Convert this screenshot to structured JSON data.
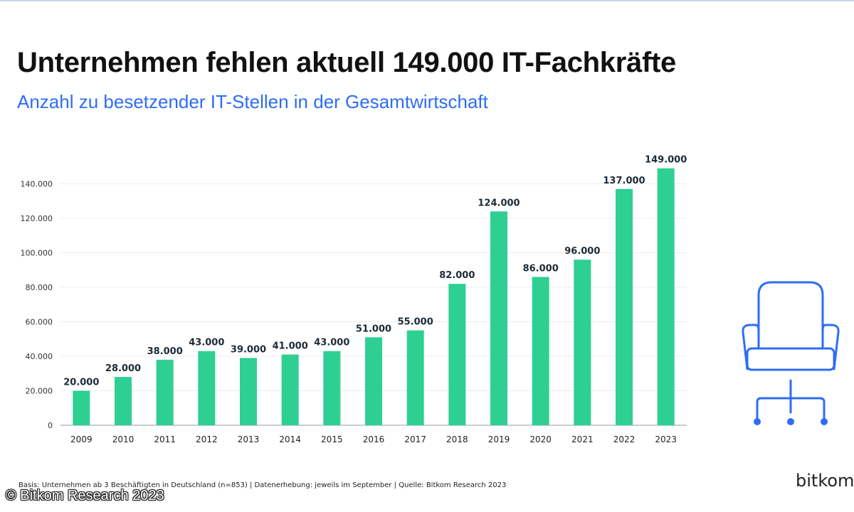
{
  "header": {
    "title": "Unternehmen fehlen aktuell 149.000 IT-Fachkräfte",
    "subtitle": "Anzahl zu besetzender IT-Stellen in der Gesamtwirtschaft"
  },
  "chart_data": {
    "type": "bar",
    "categories": [
      "2009",
      "2010",
      "2011",
      "2012",
      "2013",
      "2014",
      "2015",
      "2016",
      "2017",
      "2018",
      "2019",
      "2020",
      "2021",
      "2022",
      "2023"
    ],
    "values": [
      20000,
      28000,
      38000,
      43000,
      39000,
      41000,
      43000,
      51000,
      55000,
      82000,
      124000,
      86000,
      96000,
      137000,
      149000
    ],
    "data_labels": [
      "20.000",
      "28.000",
      "38.000",
      "43.000",
      "39.000",
      "41.000",
      "43.000",
      "51.000",
      "55.000",
      "82.000",
      "124.000",
      "86.000",
      "96.000",
      "137.000",
      "149.000"
    ],
    "yticks": [
      0,
      20000,
      40000,
      60000,
      80000,
      100000,
      120000,
      140000
    ],
    "ytick_labels": [
      "0",
      "20.000",
      "40.000",
      "60.000",
      "80.000",
      "100.000",
      "120.000",
      "140.000"
    ],
    "ylim": [
      0,
      150000
    ],
    "xlabel": "",
    "ylabel": "",
    "grid": true,
    "bar_color": "#2ecf93"
  },
  "footer": {
    "note": "Basis: Unternehmen ab 3 Beschäftigten in Deutschland (n=853) | Datenerhebung: jeweils im September | Quelle: Bitkom Research 2023",
    "copyright": "© Bitkom Research 2023",
    "logo": "bitkom"
  },
  "colors": {
    "accent": "#2d6df6",
    "bar": "#2ecf93",
    "icon": "#2d6df6"
  }
}
